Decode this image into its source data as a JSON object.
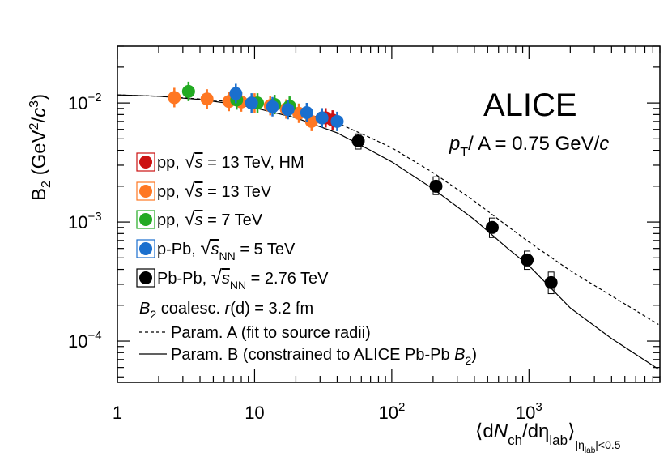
{
  "chart_data": {
    "type": "scatter",
    "title": "ALICE",
    "subtitle": {
      "p": "p",
      "T": "T",
      "rest": "/ A = 0.75 GeV/",
      "c": "c"
    },
    "ylabel": {
      "main": "B",
      "sub": "2",
      "units_open": " (GeV",
      "sup1": "2",
      "slash": "/",
      "c": "c",
      "sup2": "3",
      "units_close": ")"
    },
    "xlabel": {
      "open": "⟨d",
      "N": "N",
      "ch": "ch",
      "deta": "/dη",
      "lab": "lab",
      "close": "⟩",
      "sub_bar1": "|η",
      "sub_lab": "lab",
      "sub_rest": "|<0.5"
    },
    "x_scale": "log",
    "y_scale": "log",
    "xlim": [
      1,
      9000
    ],
    "ylim": [
      4.5e-05,
      0.03
    ],
    "x_ticks": [
      {
        "value": 1,
        "base": "1",
        "exp": ""
      },
      {
        "value": 10,
        "base": "10",
        "exp": ""
      },
      {
        "value": 100,
        "base": "10",
        "exp": "2"
      },
      {
        "value": 1000,
        "base": "10",
        "exp": "3"
      }
    ],
    "y_ticks": [
      {
        "value": 0.0001,
        "base": "10",
        "exp": "−4"
      },
      {
        "value": 0.001,
        "base": "10",
        "exp": "−3"
      },
      {
        "value": 0.01,
        "base": "10",
        "exp": "−2"
      }
    ],
    "series": [
      {
        "name": "pp, √s = 13 TeV, HM",
        "legend": {
          "a": "pp, ",
          "root": "s",
          "b": " = 13 TeV, HM"
        },
        "color": "#cc1111",
        "points": [
          {
            "x": 31,
            "y": 0.0075
          },
          {
            "x": 33,
            "y": 0.0075
          },
          {
            "x": 37,
            "y": 0.0072
          }
        ]
      },
      {
        "name": "pp, √s = 13 TeV",
        "legend": {
          "a": "pp, ",
          "root": "s",
          "b": " = 13 TeV"
        },
        "color": "#ff7722",
        "points": [
          {
            "x": 2.6,
            "y": 0.0111
          },
          {
            "x": 4.5,
            "y": 0.0108
          },
          {
            "x": 6.5,
            "y": 0.0103
          },
          {
            "x": 8.0,
            "y": 0.0102
          },
          {
            "x": 10.0,
            "y": 0.01
          },
          {
            "x": 13.0,
            "y": 0.0095
          },
          {
            "x": 17.0,
            "y": 0.0089
          },
          {
            "x": 21.0,
            "y": 0.0082
          },
          {
            "x": 26.0,
            "y": 0.007
          }
        ]
      },
      {
        "name": "pp, √s = 7 TeV",
        "legend": {
          "a": "pp, ",
          "root": "s",
          "b": " = 7 TeV"
        },
        "color": "#22aa22",
        "points": [
          {
            "x": 3.3,
            "y": 0.0125
          },
          {
            "x": 7.4,
            "y": 0.0106
          },
          {
            "x": 10.5,
            "y": 0.01
          },
          {
            "x": 14.0,
            "y": 0.0097
          },
          {
            "x": 18.0,
            "y": 0.0094
          }
        ]
      },
      {
        "name": "p-Pb, √sNN = 5 TeV",
        "legend": {
          "a": "p-Pb, ",
          "root": "s",
          "sub": "NN",
          "b": " = 5 TeV"
        },
        "color": "#1a6fce",
        "points": [
          {
            "x": 7.3,
            "y": 0.012
          },
          {
            "x": 9.5,
            "y": 0.01
          },
          {
            "x": 13.5,
            "y": 0.0093
          },
          {
            "x": 17.5,
            "y": 0.0088
          },
          {
            "x": 24.0,
            "y": 0.0083
          },
          {
            "x": 31.0,
            "y": 0.0075
          },
          {
            "x": 40.0,
            "y": 0.007
          }
        ]
      },
      {
        "name": "Pb-Pb, √sNN = 2.76 TeV",
        "legend": {
          "a": "Pb-Pb, ",
          "root": "s",
          "sub": "NN",
          "b": " = 2.76 TeV"
        },
        "color": "#000000",
        "points": [
          {
            "x": 57,
            "y": 0.0048
          },
          {
            "x": 210,
            "y": 0.002
          },
          {
            "x": 540,
            "y": 0.0009
          },
          {
            "x": 970,
            "y": 0.00048
          },
          {
            "x": 1450,
            "y": 0.00031
          }
        ]
      }
    ],
    "coalescence_note": {
      "b": "B",
      "sub": "2",
      "rest1": " coalesc. ",
      "r": "r",
      "rest2": "(d) = 3.2 fm"
    },
    "curves": [
      {
        "name": "Param. A (fit to source radii)",
        "style": "dashed",
        "points": [
          [
            1,
            0.0117
          ],
          [
            2,
            0.0114
          ],
          [
            4,
            0.0108
          ],
          [
            7,
            0.0102
          ],
          [
            10,
            0.0097
          ],
          [
            20,
            0.0086
          ],
          [
            40,
            0.0068
          ],
          [
            70,
            0.0051
          ],
          [
            100,
            0.0042
          ],
          [
            200,
            0.0026
          ],
          [
            400,
            0.0015
          ],
          [
            700,
            0.00092
          ],
          [
            1000,
            0.00068
          ],
          [
            2000,
            0.00039
          ],
          [
            4000,
            0.00024
          ],
          [
            8800,
            0.000138
          ]
        ]
      },
      {
        "name": "Param. B (constrained to ALICE Pb-Pb B2)",
        "legend": {
          "a": "Param. B (constrained to ALICE Pb-Pb ",
          "b": "B",
          "sub": "2",
          "c": ")"
        },
        "style": "solid",
        "points": [
          [
            1,
            0.0117
          ],
          [
            2,
            0.0114
          ],
          [
            4,
            0.0107
          ],
          [
            7,
            0.0098
          ],
          [
            10,
            0.0091
          ],
          [
            20,
            0.0075
          ],
          [
            40,
            0.0056
          ],
          [
            70,
            0.004
          ],
          [
            100,
            0.0032
          ],
          [
            200,
            0.0019
          ],
          [
            400,
            0.00105
          ],
          [
            700,
            0.0006
          ],
          [
            1000,
            0.00043
          ],
          [
            2000,
            0.00019
          ],
          [
            4000,
            0.000105
          ],
          [
            8800,
            5.8e-05
          ]
        ]
      }
    ],
    "pbpb_sys_boxes": [
      {
        "x": 57,
        "lo": 0.0041,
        "hi": 0.0055
      },
      {
        "x": 210,
        "lo": 0.0017,
        "hi": 0.0024
      },
      {
        "x": 540,
        "lo": 0.00074,
        "hi": 0.00108
      },
      {
        "x": 970,
        "lo": 0.0004,
        "hi": 0.00057
      },
      {
        "x": 1450,
        "lo": 0.00025,
        "hi": 0.00038
      }
    ]
  }
}
